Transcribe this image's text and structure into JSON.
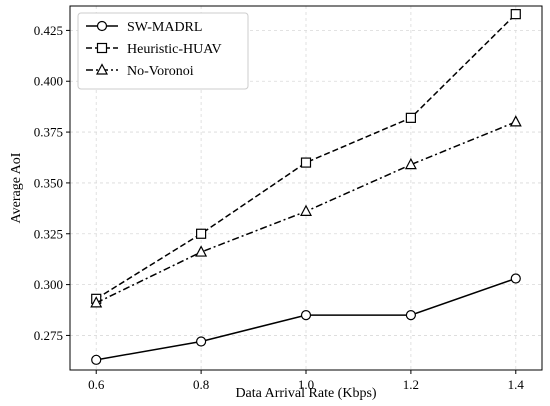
{
  "chart_data": {
    "type": "line",
    "title": "",
    "xlabel": "Data Arrival Rate (Kbps)",
    "ylabel": "Average AoI",
    "x": [
      0.6,
      0.8,
      1.0,
      1.2,
      1.4
    ],
    "xlim": [
      0.55,
      1.45
    ],
    "ylim": [
      0.258,
      0.437
    ],
    "xticks": [
      "0.6",
      "0.8",
      "1.0",
      "1.2",
      "1.4"
    ],
    "yticks": [
      "0.275",
      "0.300",
      "0.325",
      "0.350",
      "0.375",
      "0.400",
      "0.425"
    ],
    "grid": true,
    "legend_position": "top-left",
    "series": [
      {
        "name": "SW-MADRL",
        "values": [
          0.263,
          0.272,
          0.285,
          0.285,
          0.303
        ],
        "line_style": "solid",
        "marker": "circle",
        "color": "#000000"
      },
      {
        "name": "Heuristic-HUAV",
        "values": [
          0.293,
          0.325,
          0.36,
          0.382,
          0.433
        ],
        "line_style": "dashed",
        "marker": "square",
        "color": "#000000"
      },
      {
        "name": "No-Voronoi",
        "values": [
          0.291,
          0.316,
          0.336,
          0.359,
          0.38
        ],
        "line_style": "dashdot",
        "marker": "triangle",
        "color": "#000000"
      }
    ]
  }
}
